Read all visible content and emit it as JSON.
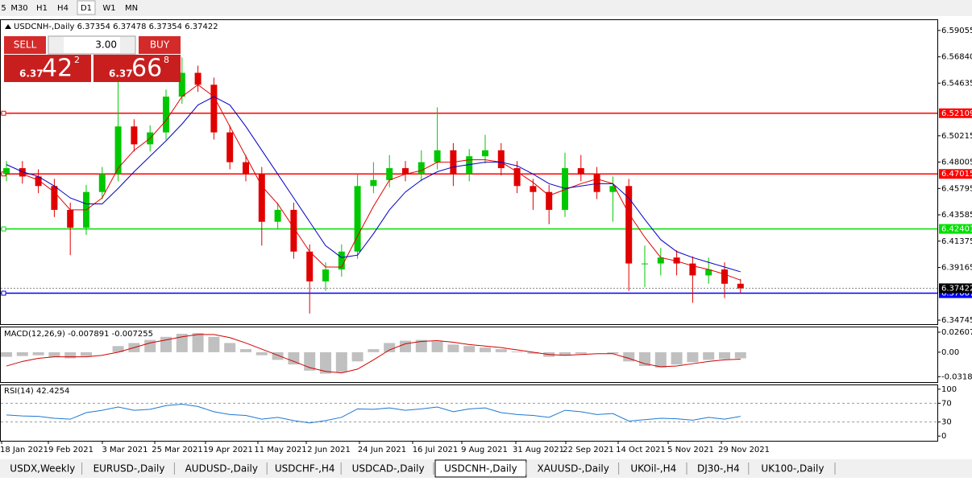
{
  "toolbar": [
    "5",
    "M30",
    "H1",
    "H4",
    "D1",
    "W1",
    "MN"
  ],
  "symbol_info": "USDCNH-,Daily  6.37354 6.37478 6.37354 6.37422",
  "trade_panel": {
    "sell": "SELL",
    "buy": "BUY",
    "lots": "3.00",
    "bid": {
      "big": "6.37",
      "main": "42",
      "small": "2"
    },
    "ask": {
      "big": "6.37",
      "main": "66",
      "small": "8"
    }
  },
  "chart_data": [
    {
      "type": "candlestick",
      "up_color": "#00c800",
      "down_color": "#e00000",
      "open": [
        6.47,
        6.475,
        6.468,
        6.46,
        6.44,
        6.425,
        6.455,
        6.47,
        6.51,
        6.495,
        6.505,
        6.535,
        6.555,
        6.545,
        6.505,
        6.48,
        6.47,
        6.43,
        6.44,
        6.405,
        6.38,
        6.39,
        6.405,
        6.46,
        6.465,
        6.475,
        6.47,
        6.48,
        6.49,
        6.47,
        6.485,
        6.49,
        6.475,
        6.46,
        6.455,
        6.44,
        6.475,
        6.47,
        6.455,
        6.46,
        6.395,
        6.395,
        6.4,
        6.395,
        6.385,
        6.39,
        6.378
      ],
      "high": [
        6.481,
        6.481,
        6.474,
        6.466,
        6.446,
        6.461,
        6.476,
        6.56,
        6.516,
        6.511,
        6.541,
        6.568,
        6.561,
        6.551,
        6.511,
        6.486,
        6.476,
        6.446,
        6.446,
        6.411,
        6.396,
        6.411,
        6.47,
        6.48,
        6.486,
        6.481,
        6.49,
        6.526,
        6.496,
        6.491,
        6.503,
        6.496,
        6.481,
        6.466,
        6.461,
        6.488,
        6.486,
        6.476,
        6.468,
        6.466,
        6.41,
        6.408,
        6.406,
        6.401,
        6.4,
        6.396,
        6.382
      ],
      "low": [
        6.464,
        6.462,
        6.454,
        6.434,
        6.402,
        6.419,
        6.449,
        6.464,
        6.489,
        6.489,
        6.499,
        6.529,
        6.539,
        6.499,
        6.474,
        6.464,
        6.41,
        6.424,
        6.399,
        6.353,
        6.372,
        6.384,
        6.399,
        6.454,
        6.459,
        6.464,
        6.464,
        6.474,
        6.46,
        6.464,
        6.479,
        6.469,
        6.454,
        6.44,
        6.428,
        6.434,
        6.464,
        6.449,
        6.43,
        6.372,
        6.375,
        6.385,
        6.385,
        6.362,
        6.378,
        6.366,
        6.37
      ],
      "close": [
        6.475,
        6.468,
        6.46,
        6.44,
        6.425,
        6.455,
        6.47,
        6.51,
        6.495,
        6.505,
        6.535,
        6.555,
        6.545,
        6.505,
        6.48,
        6.47,
        6.43,
        6.44,
        6.405,
        6.38,
        6.39,
        6.405,
        6.46,
        6.465,
        6.475,
        6.47,
        6.48,
        6.49,
        6.47,
        6.485,
        6.49,
        6.475,
        6.46,
        6.455,
        6.44,
        6.475,
        6.47,
        6.455,
        6.46,
        6.395,
        6.395,
        6.4,
        6.395,
        6.385,
        6.39,
        6.378,
        6.374
      ],
      "lines": [
        {
          "color": "#e00000",
          "values": [
            6.47,
            6.47,
            6.465,
            6.455,
            6.44,
            6.44,
            6.45,
            6.475,
            6.49,
            6.5,
            6.515,
            6.535,
            6.545,
            6.535,
            6.51,
            6.485,
            6.46,
            6.445,
            6.425,
            6.405,
            6.392,
            6.392,
            6.418,
            6.443,
            6.465,
            6.47,
            6.473,
            6.48,
            6.48,
            6.482,
            6.482,
            6.48,
            6.472,
            6.463,
            6.452,
            6.457,
            6.462,
            6.466,
            6.462,
            6.437,
            6.417,
            6.4,
            6.397,
            6.393,
            6.39,
            6.386,
            6.381
          ]
        },
        {
          "color": "#0000c8",
          "values": [
            6.478,
            6.472,
            6.468,
            6.46,
            6.45,
            6.445,
            6.445,
            6.458,
            6.472,
            6.485,
            6.498,
            6.512,
            6.528,
            6.535,
            6.528,
            6.51,
            6.49,
            6.47,
            6.45,
            6.43,
            6.41,
            6.4,
            6.402,
            6.42,
            6.44,
            6.455,
            6.465,
            6.472,
            6.476,
            6.478,
            6.48,
            6.48,
            6.477,
            6.47,
            6.462,
            6.458,
            6.46,
            6.462,
            6.462,
            6.45,
            6.432,
            6.415,
            6.405,
            6.4,
            6.396,
            6.392,
            6.388
          ]
        }
      ],
      "levels": [
        {
          "value": 6.52109,
          "color": "#ff0000"
        },
        {
          "value": 6.47015,
          "color": "#ff0000"
        },
        {
          "value": 6.42401,
          "color": "#00e000"
        },
        {
          "value": 6.37007,
          "color": "#0000ff"
        }
      ],
      "current_price": 6.37422,
      "ylim": [
        6.3441,
        6.5999
      ],
      "yticks": [
        6.59055,
        {
          "value": 6.5684,
          "label": "6.56840"
        },
        6.54635,
        6.50215,
        6.48005,
        6.45795,
        6.43585,
        6.41375,
        6.39165,
        6.34745
      ]
    },
    {
      "type": "macd",
      "title": "MACD(12,26,9) -0.007891 -0.007255",
      "hist_color": "#c0c0c0",
      "signal_color": "#d00000",
      "histogram": [
        -0.006,
        -0.005,
        -0.004,
        -0.006,
        -0.008,
        -0.005,
        0.0,
        0.008,
        0.012,
        0.016,
        0.02,
        0.024,
        0.025,
        0.02,
        0.012,
        0.004,
        -0.004,
        -0.01,
        -0.016,
        -0.024,
        -0.028,
        -0.026,
        -0.012,
        0.004,
        0.012,
        0.015,
        0.016,
        0.014,
        0.01,
        0.008,
        0.006,
        0.004,
        0.001,
        -0.002,
        -0.006,
        -0.004,
        -0.002,
        0.0,
        -0.002,
        -0.012,
        -0.018,
        -0.02,
        -0.016,
        -0.013,
        -0.01,
        -0.009,
        -0.008
      ],
      "signal": [
        -0.018,
        -0.012,
        -0.008,
        -0.006,
        -0.006,
        -0.006,
        -0.004,
        0.0,
        0.006,
        0.012,
        0.016,
        0.02,
        0.023,
        0.023,
        0.019,
        0.012,
        0.004,
        -0.004,
        -0.012,
        -0.02,
        -0.025,
        -0.027,
        -0.022,
        -0.01,
        0.003,
        0.011,
        0.014,
        0.015,
        0.013,
        0.01,
        0.008,
        0.006,
        0.003,
        0.0,
        -0.003,
        -0.004,
        -0.003,
        -0.002,
        -0.002,
        -0.008,
        -0.015,
        -0.019,
        -0.018,
        -0.015,
        -0.012,
        -0.01,
        -0.009
      ],
      "ylim": [
        -0.0389,
        0.0334
      ],
      "yticks": [
        0.02607,
        {
          "value": 0,
          "label": "0.00"
        },
        -0.03187
      ]
    },
    {
      "type": "line",
      "title": "RSI(14) 42.4254",
      "color": "#1e78d2",
      "values": [
        45,
        43,
        42,
        38,
        36,
        50,
        55,
        62,
        55,
        57,
        65,
        68,
        63,
        52,
        46,
        44,
        36,
        40,
        33,
        28,
        33,
        40,
        58,
        57,
        60,
        55,
        58,
        62,
        52,
        58,
        60,
        50,
        46,
        44,
        40,
        55,
        52,
        46,
        48,
        32,
        35,
        38,
        37,
        34,
        40,
        36,
        42
      ],
      "levels": [
        70,
        30
      ],
      "ylim": [
        -10,
        110
      ],
      "yticks": [
        100,
        70,
        30,
        0
      ]
    }
  ],
  "x_labels": [
    "18 Jan 2021",
    "9 Feb 2021",
    "3 Mar 2021",
    "25 Mar 2021",
    "19 Apr 2021",
    "11 May 2021",
    "2 Jun 2021",
    "24 Jun 2021",
    "16 Jul 2021",
    "9 Aug 2021",
    "31 Aug 2021",
    "22 Sep 2021",
    "14 Oct 2021",
    "5 Nov 2021",
    "29 Nov 2021"
  ],
  "tabs": [
    "USDX,Weekly",
    "EURUSD-,Daily",
    "AUDUSD-,Daily",
    "USDCHF-,H4",
    "USDCAD-,Daily",
    "USDCNH-,Daily",
    "XAUUSD-,Daily",
    "UKOil-,H4",
    "DJ30-,H4",
    "UK100-,Daily"
  ],
  "active_tab": 5
}
